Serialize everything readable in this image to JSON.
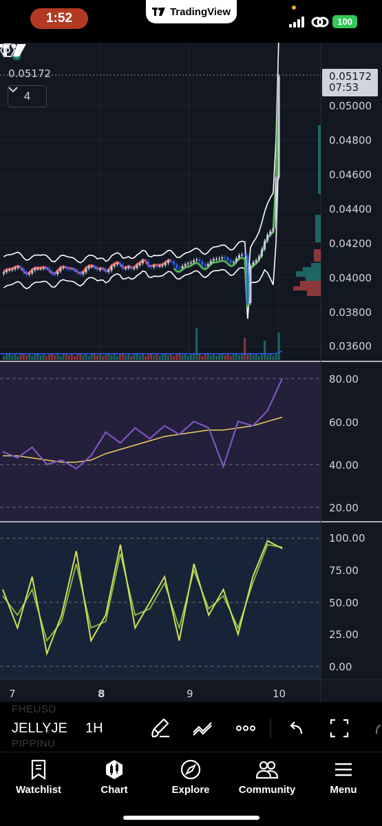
{
  "status_bar": {
    "time": "1:52",
    "app_pill": "TradingView",
    "battery": "100",
    "colors": {
      "time_pill": "#b23a22",
      "battery": "#34c759"
    }
  },
  "chart": {
    "last_price": "0.05172",
    "countdown": "07:53",
    "collapse_count": "4",
    "price_axis": [
      "0.05000",
      "0.04800",
      "0.04600",
      "0.04400",
      "0.04200",
      "0.04000",
      "0.03800",
      "0.03600"
    ],
    "rsi_axis": [
      "80.00",
      "60.00",
      "40.00",
      "20.00"
    ],
    "stoch_axis": [
      "100.00",
      "75.00",
      "50.00",
      "25.00",
      "0.00"
    ],
    "time_axis": [
      "7",
      "8",
      "9",
      "10"
    ],
    "colors": {
      "up": "#c7cbd6",
      "down": "#2962ff",
      "ema_fast": "#ef5350",
      "ema_slow": "#4caf50",
      "rsi": "#7e57c2",
      "rsi_ma": "#f0d060",
      "stoch_k": "#d4e157",
      "stoch_d": "#8bc34a"
    }
  },
  "chart_data": [
    {
      "type": "line",
      "pane": "price",
      "ylim": [
        0.035,
        0.0525
      ],
      "x": [
        "7",
        "8",
        "9",
        "10"
      ],
      "close_estimate": [
        0.0401,
        0.0397,
        0.0402,
        0.0517
      ]
    },
    {
      "type": "line",
      "pane": "rsi",
      "ylim": [
        10,
        90
      ],
      "series": [
        {
          "values": [
            46,
            43,
            48,
            40,
            42,
            38,
            44,
            55,
            50,
            57,
            52,
            58,
            54,
            60,
            57,
            39,
            60,
            58,
            65,
            80
          ]
        },
        {
          "values": [
            44,
            44,
            43,
            42,
            41,
            41,
            42,
            45,
            47,
            49,
            51,
            53,
            54,
            55,
            56,
            56,
            57,
            58,
            60,
            62
          ]
        }
      ]
    },
    {
      "type": "line",
      "pane": "stochastic",
      "ylim": [
        -5,
        105
      ],
      "series": [
        {
          "values": [
            60,
            30,
            70,
            10,
            40,
            90,
            20,
            40,
            95,
            30,
            50,
            70,
            20,
            80,
            40,
            60,
            25,
            70,
            98,
            92
          ]
        },
        {
          "values": [
            55,
            40,
            60,
            20,
            35,
            80,
            30,
            35,
            88,
            40,
            45,
            65,
            30,
            75,
            45,
            55,
            30,
            65,
            95,
            93
          ]
        }
      ]
    }
  ],
  "toolbar": {
    "symbol": "JELLYJE",
    "interval": "1H",
    "ghost_top": "FHEUSD",
    "ghost_bottom": "PIPPINU"
  },
  "tabs": [
    {
      "label": "Watchlist",
      "icon": "bookmark-icon"
    },
    {
      "label": "Chart",
      "icon": "candles-icon"
    },
    {
      "label": "Explore",
      "icon": "compass-icon"
    },
    {
      "label": "Community",
      "icon": "people-icon"
    },
    {
      "label": "Menu",
      "icon": "hamburger-icon"
    }
  ]
}
